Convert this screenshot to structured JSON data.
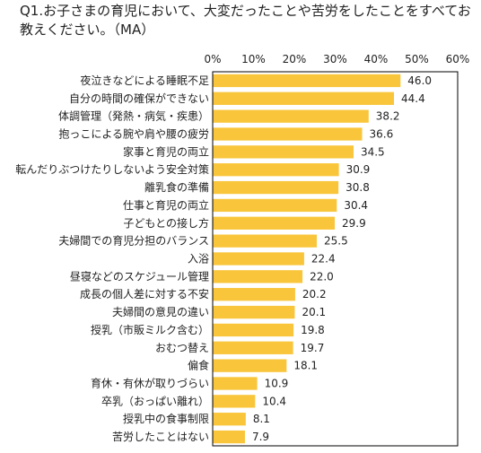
{
  "chart_data": {
    "type": "bar",
    "orientation": "horizontal",
    "title": "Q1.お子さまの育児において、大変だったことや苦労をしたことをすべてお教えください。（MA）",
    "xlabel": "",
    "ylabel": "",
    "x_ticks": [
      "0%",
      "10%",
      "20%",
      "30%",
      "40%",
      "50%",
      "60%"
    ],
    "xlim": [
      0,
      60
    ],
    "grid": false,
    "bar_color": "#F9C53A",
    "categories": [
      "夜泣きなどによる睡眠不足",
      "自分の時間の確保ができない",
      "体調管理（発熱・病気・疾患）",
      "抱っこによる腕や肩や腰の疲労",
      "家事と育児の両立",
      "転んだりぶつけたりしないよう安全対策",
      "離乳食の準備",
      "仕事と育児の両立",
      "子どもとの接し方",
      "夫婦間での育児分担のバランス",
      "入浴",
      "昼寝などのスケジュール管理",
      "成長の個人差に対する不安",
      "夫婦間の意見の違い",
      "授乳（市販ミルク含む）",
      "おむつ替え",
      "偏食",
      "育休・有休が取りづらい",
      "卒乳（おっぱい離れ）",
      "授乳中の食事制限",
      "苦労したことはない"
    ],
    "values": [
      46.0,
      44.4,
      38.2,
      36.6,
      34.5,
      30.9,
      30.8,
      30.4,
      29.9,
      25.5,
      22.4,
      22.0,
      20.2,
      20.1,
      19.8,
      19.7,
      18.1,
      10.9,
      10.4,
      8.1,
      7.9
    ],
    "value_labels": [
      "46.0",
      "44.4",
      "38.2",
      "36.6",
      "34.5",
      "30.9",
      "30.8",
      "30.4",
      "29.9",
      "25.5",
      "22.4",
      "22.0",
      "20.2",
      "20.1",
      "19.8",
      "19.7",
      "18.1",
      "10.9",
      "10.4",
      "8.1",
      "7.9"
    ]
  }
}
